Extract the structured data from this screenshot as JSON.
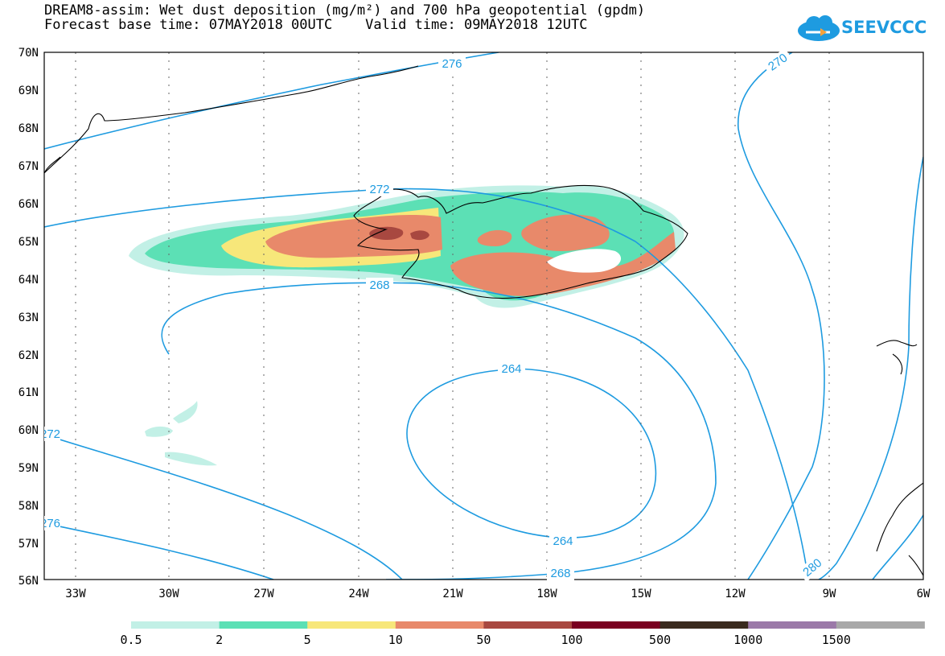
{
  "title": {
    "line1": "DREAM8-assim: Wet dust deposition (mg/m²) and 700 hPa geopotential (gpdm)",
    "line2": "Forecast base time: 07MAY2018 00UTC    Valid time: 09MAY2018 12UTC"
  },
  "logo": {
    "text": "SEEVCCC",
    "icon": "cloud-icon"
  },
  "axes": {
    "lat_labels": [
      "70N",
      "69N",
      "68N",
      "67N",
      "66N",
      "65N",
      "64N",
      "63N",
      "62N",
      "61N",
      "60N",
      "59N",
      "58N",
      "57N",
      "56N"
    ],
    "lon_labels": [
      "33W",
      "30W",
      "27W",
      "24W",
      "21W",
      "18W",
      "15W",
      "12W",
      "9W",
      "6W"
    ]
  },
  "contour_labels": [
    "276",
    "270",
    "272",
    "268",
    "264",
    "264",
    "268",
    "272",
    "276",
    "280"
  ],
  "legend": {
    "labels": [
      "0.5",
      "2",
      "5",
      "10",
      "50",
      "100",
      "500",
      "1000",
      "1500"
    ],
    "colors": [
      "#c2f0e6",
      "#5ce0b5",
      "#f7e77a",
      "#e8896a",
      "#a84840",
      "#7a0020",
      "#3a2a1e",
      "#9b79a8",
      "#a8a8a8"
    ]
  },
  "colors": {
    "contour": "#1e9be0",
    "coast": "#000000",
    "frame": "#000000"
  }
}
